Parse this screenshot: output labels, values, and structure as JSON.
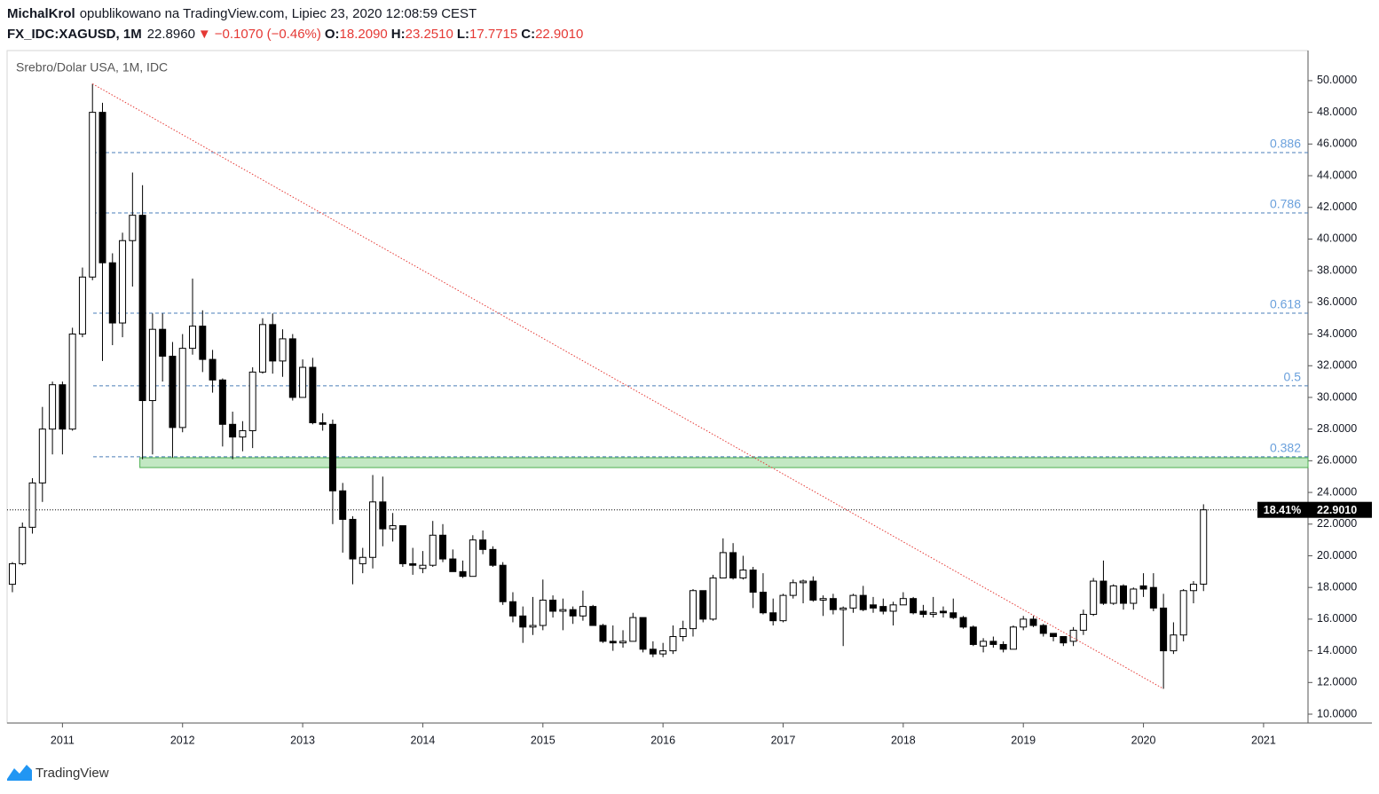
{
  "header": {
    "author": "MichalKrol",
    "published": "opublikowano na TradingView.com, Lipiec 23, 2020 12:08:59 CEST",
    "symbol": "FX_IDC:XAGUSD, 1M",
    "last": "22.8960",
    "direction": "▼",
    "change": "−0.1070 (−0.46%)",
    "ohlc": [
      {
        "key": "O:",
        "value": "18.2090"
      },
      {
        "key": "H:",
        "value": "23.2510"
      },
      {
        "key": "L:",
        "value": "17.7715"
      },
      {
        "key": "C:",
        "value": "22.9010"
      }
    ]
  },
  "footer": {
    "brand": "TradingView"
  },
  "chart_data": {
    "type": "candlestick",
    "legend": "Srebro/Dolar USA, 1M, IDC",
    "xlim": [
      -0.53,
      129.44
    ],
    "ylim": [
      9.44,
      51.9
    ],
    "xticks": [
      {
        "value": 5,
        "label": "2011"
      },
      {
        "value": 17,
        "label": "2012"
      },
      {
        "value": 29,
        "label": "2013"
      },
      {
        "value": 41,
        "label": "2014"
      },
      {
        "value": 53,
        "label": "2015"
      },
      {
        "value": 65,
        "label": "2016"
      },
      {
        "value": 77,
        "label": "2017"
      },
      {
        "value": 89,
        "label": "2018"
      },
      {
        "value": 101,
        "label": "2019"
      },
      {
        "value": 113,
        "label": "2020"
      },
      {
        "value": 125,
        "label": "2021"
      }
    ],
    "yticks": [
      {
        "value": 10,
        "label": "10.0000"
      },
      {
        "value": 12,
        "label": "12.0000"
      },
      {
        "value": 14,
        "label": "14.0000"
      },
      {
        "value": 16,
        "label": "16.0000"
      },
      {
        "value": 18,
        "label": "18.0000"
      },
      {
        "value": 20,
        "label": "20.0000"
      },
      {
        "value": 22,
        "label": "22.0000"
      },
      {
        "value": 24,
        "label": "24.0000"
      },
      {
        "value": 26,
        "label": "26.0000"
      },
      {
        "value": 28,
        "label": "28.0000"
      },
      {
        "value": 30,
        "label": "30.0000"
      },
      {
        "value": 32,
        "label": "32.0000"
      },
      {
        "value": 34,
        "label": "34.0000"
      },
      {
        "value": 36,
        "label": "36.0000"
      },
      {
        "value": 38,
        "label": "38.0000"
      },
      {
        "value": 40,
        "label": "40.0000"
      },
      {
        "value": 42,
        "label": "42.0000"
      },
      {
        "value": 44,
        "label": "44.0000"
      },
      {
        "value": 46,
        "label": "46.0000"
      },
      {
        "value": 48,
        "label": "48.0000"
      },
      {
        "value": 50,
        "label": "50.0000"
      }
    ],
    "up_color": "#ffffff",
    "down_color": "#000000",
    "open": [
      18.2,
      19.5,
      21.8,
      24.6,
      28.0,
      30.8,
      28.0,
      34.0,
      37.6,
      48.0,
      38.5,
      34.7,
      39.9,
      41.5,
      29.8,
      34.3,
      32.6,
      28.1,
      33.1,
      34.5,
      32.4,
      31.1,
      28.3,
      27.5,
      27.9,
      31.6,
      34.6,
      32.3,
      33.7,
      30.0,
      31.9,
      28.4,
      28.3,
      24.1,
      22.3,
      19.5,
      19.9,
      23.4,
      21.7,
      21.9,
      19.5,
      19.2,
      19.4,
      21.3,
      19.8,
      19.0,
      18.7,
      21.0,
      20.4,
      19.4,
      17.1,
      16.2,
      15.5,
      15.6,
      17.2,
      16.5,
      16.6,
      16.2,
      16.8,
      15.6,
      14.6,
      14.5,
      14.6,
      16.1,
      14.1,
      13.8,
      14.0,
      14.9,
      15.4,
      17.8,
      16.0,
      18.6,
      20.2,
      18.6,
      19.1,
      17.7,
      16.4,
      15.9,
      17.5,
      18.3,
      18.4,
      17.2,
      17.3,
      16.6,
      16.7,
      17.5,
      16.9,
      16.8,
      16.5,
      16.9,
      17.3,
      16.5,
      16.3,
      16.5,
      16.4,
      16.1,
      15.5,
      14.3,
      14.6,
      14.4,
      14.1,
      15.5,
      16.0,
      15.6,
      15.1,
      14.9,
      14.6,
      15.3,
      16.3,
      18.4,
      17.0,
      18.1,
      17.0,
      18.1,
      18.0,
      16.7,
      14.0,
      15.0,
      17.8,
      18.209
    ],
    "high": [
      19.6,
      22.1,
      24.9,
      29.4,
      31.0,
      31.0,
      34.4,
      38.2,
      49.8,
      48.6,
      39.1,
      40.4,
      44.2,
      43.4,
      35.3,
      35.3,
      33.5,
      34.0,
      37.5,
      35.5,
      33.0,
      31.2,
      29.1,
      28.5,
      31.9,
      35.0,
      35.3,
      34.3,
      34.0,
      32.4,
      32.5,
      29.0,
      28.6,
      24.6,
      22.5,
      20.5,
      25.1,
      25.0,
      22.7,
      21.9,
      20.5,
      20.3,
      22.2,
      22.0,
      20.4,
      19.7,
      21.3,
      21.6,
      20.6,
      19.6,
      17.7,
      16.8,
      17.4,
      18.5,
      17.5,
      17.3,
      16.8,
      17.8,
      16.9,
      15.7,
      15.6,
      15.3,
      16.4,
      16.1,
      14.6,
      14.5,
      15.6,
      15.9,
      17.9,
      17.8,
      18.8,
      21.1,
      20.8,
      20.0,
      19.3,
      18.9,
      17.3,
      17.6,
      18.5,
      18.5,
      18.7,
      17.5,
      17.6,
      16.8,
      17.6,
      18.1,
      17.4,
      17.3,
      17.1,
      17.7,
      17.4,
      16.9,
      17.4,
      16.8,
      17.3,
      16.2,
      15.6,
      14.8,
      14.9,
      14.6,
      15.6,
      16.2,
      16.2,
      15.7,
      15.1,
      14.9,
      15.5,
      16.6,
      18.6,
      19.7,
      18.2,
      18.2,
      18.0,
      18.9,
      18.9,
      17.6,
      15.8,
      17.9,
      18.4,
      23.251
    ],
    "low": [
      17.7,
      19.4,
      21.4,
      23.4,
      26.4,
      26.4,
      27.9,
      33.8,
      37.4,
      32.3,
      33.3,
      33.8,
      37.0,
      26.1,
      26.4,
      31.0,
      26.2,
      27.8,
      32.7,
      31.6,
      30.3,
      26.9,
      26.1,
      26.6,
      26.8,
      31.5,
      31.5,
      31.3,
      29.8,
      30.0,
      28.3,
      27.9,
      22.0,
      20.2,
      18.2,
      18.9,
      19.2,
      20.6,
      20.9,
      19.3,
      18.8,
      18.9,
      19.3,
      19.6,
      19.0,
      18.6,
      18.7,
      20.1,
      19.3,
      16.9,
      15.8,
      14.5,
      15.0,
      15.3,
      16.1,
      15.3,
      15.7,
      15.9,
      15.6,
      14.5,
      14.0,
      14.2,
      14.6,
      13.9,
      13.6,
      13.6,
      13.8,
      14.6,
      14.9,
      15.8,
      15.9,
      18.6,
      18.5,
      18.5,
      16.7,
      16.3,
      15.6,
      15.8,
      17.3,
      17.0,
      17.1,
      16.2,
      16.3,
      14.3,
      16.4,
      16.5,
      16.4,
      16.3,
      15.6,
      16.9,
      16.3,
      16.1,
      16.1,
      16.1,
      16.0,
      15.4,
      14.3,
      13.9,
      14.2,
      13.9,
      14.1,
      15.3,
      15.5,
      14.9,
      14.6,
      14.3,
      14.3,
      15.0,
      16.2,
      16.9,
      16.9,
      16.6,
      16.6,
      17.4,
      16.5,
      11.6,
      13.8,
      14.6,
      17.0,
      17.7715
    ],
    "close": [
      19.5,
      21.8,
      24.6,
      28.0,
      30.8,
      28.0,
      34.0,
      37.6,
      48.0,
      38.5,
      34.7,
      39.9,
      41.5,
      29.8,
      34.3,
      32.6,
      28.1,
      33.1,
      34.5,
      32.4,
      31.1,
      28.3,
      27.5,
      27.9,
      31.6,
      34.6,
      32.3,
      33.7,
      30.0,
      31.9,
      28.4,
      28.3,
      24.1,
      22.3,
      19.8,
      19.9,
      23.4,
      21.7,
      21.9,
      19.5,
      19.4,
      19.4,
      21.3,
      19.8,
      19.0,
      18.7,
      21.0,
      20.4,
      19.4,
      17.1,
      16.2,
      15.5,
      15.6,
      17.2,
      16.5,
      16.6,
      16.2,
      16.8,
      15.6,
      14.6,
      14.5,
      14.6,
      16.1,
      14.1,
      13.8,
      14.0,
      14.9,
      15.4,
      17.8,
      16.0,
      18.6,
      20.2,
      18.6,
      19.1,
      17.7,
      16.4,
      15.9,
      17.5,
      18.3,
      18.4,
      17.2,
      17.3,
      16.6,
      16.7,
      17.5,
      16.6,
      16.7,
      16.5,
      16.9,
      17.3,
      16.4,
      16.3,
      16.4,
      16.4,
      16.1,
      15.5,
      14.4,
      14.6,
      14.4,
      14.1,
      15.5,
      16.0,
      15.6,
      15.1,
      14.9,
      14.5,
      15.3,
      16.3,
      18.4,
      17.0,
      18.1,
      17.0,
      17.9,
      17.9,
      16.7,
      14.0,
      15.0,
      17.8,
      18.2,
      22.901
    ],
    "fib_levels": [
      {
        "label": "0.886",
        "value": 45.46
      },
      {
        "label": "0.786",
        "value": 41.65
      },
      {
        "label": "0.618",
        "value": 35.32
      },
      {
        "label": "0.5",
        "value": 30.73
      },
      {
        "label": "0.382",
        "value": 26.25
      }
    ],
    "fib_color": "#4a7db8",
    "fib_label_color": "#6aa0dc",
    "zone": {
      "low": 25.57,
      "high": 26.19,
      "start": 13,
      "color": "#b7e4b9",
      "border": "#4caf50"
    },
    "trend_line": {
      "x": [
        8,
        115
      ],
      "y": [
        49.8,
        11.6
      ],
      "color": "#e53935"
    },
    "price_line": {
      "value": 22.901,
      "label": "22.9010",
      "change": 18.41,
      "change_label": "18.41%"
    }
  }
}
